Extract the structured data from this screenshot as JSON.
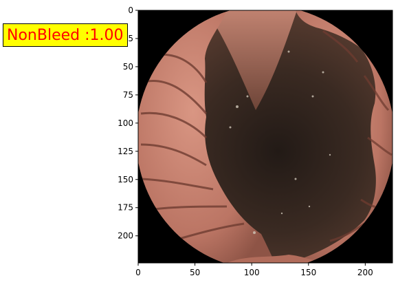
{
  "image_panel": {
    "subject": "capsule endoscopy frame of small intestine",
    "background_color": "#000000"
  },
  "prediction_label": {
    "text": "NonBleed :1.00",
    "text_color": "#ff0000",
    "box_color": "#ffff00"
  },
  "axes": {
    "x_ticks": [
      "0",
      "50",
      "100",
      "150",
      "200"
    ],
    "y_ticks": [
      "0",
      "25",
      "50",
      "75",
      "100",
      "125",
      "150",
      "175",
      "200"
    ],
    "x_range": [
      0,
      224
    ],
    "y_range": [
      0,
      224
    ]
  }
}
